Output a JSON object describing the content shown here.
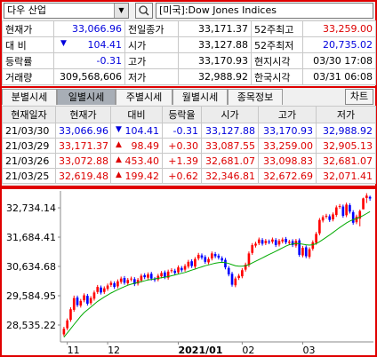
{
  "header": {
    "symbol": "다우 산업",
    "market": "[미국]:Dow Jones Indices"
  },
  "quote": {
    "change_arrow": "▼",
    "rows": [
      [
        "현재가",
        "33,066.96",
        "전일종가",
        "33,171.37",
        "52주최고",
        "33,259.00"
      ],
      [
        "대 비",
        "104.41",
        "시가",
        "33,127.88",
        "52주최저",
        "20,735.02"
      ],
      [
        "등락률",
        "-0.31",
        "고가",
        "33,170.93",
        "현지시각",
        "03/30 17:08"
      ],
      [
        "거래량",
        "309,568,606",
        "저가",
        "32,988.92",
        "한국시각",
        "03/31 06:08"
      ]
    ]
  },
  "tabs": [
    "분별시세",
    "일별시세",
    "주별시세",
    "월별시세",
    "종목정보"
  ],
  "chart_button": "차트",
  "daily": {
    "columns": [
      "현재일자",
      "현재가",
      "대비",
      "등락율",
      "시가",
      "고가",
      "저가"
    ],
    "rows": [
      {
        "color": "#0000dd",
        "date": "21/03/30",
        "price": "33,066.96",
        "arrow": "▼",
        "change": "104.41",
        "rate": "-0.31",
        "open": "33,127.88",
        "high": "33,170.93",
        "low": "32,988.92"
      },
      {
        "color": "#dd0000",
        "date": "21/03/29",
        "price": "33,171.37",
        "arrow": "▲",
        "change": "98.49",
        "rate": "+0.30",
        "open": "33,087.55",
        "high": "33,259.00",
        "low": "32,905.13"
      },
      {
        "color": "#dd0000",
        "date": "21/03/26",
        "price": "33,072.88",
        "arrow": "▲",
        "change": "453.40",
        "rate": "+1.39",
        "open": "32,681.07",
        "high": "33,098.83",
        "low": "32,681.07"
      },
      {
        "color": "#dd0000",
        "date": "21/03/25",
        "price": "32,619.48",
        "arrow": "▲",
        "change": "199.42",
        "rate": "+0.62",
        "open": "32,346.81",
        "high": "32,672.69",
        "low": "32,071.41"
      }
    ]
  },
  "chart_data": {
    "type": "candlestick",
    "up_color": "#ff0000",
    "down_color": "#0000ff",
    "categories": [
      null,
      "11",
      null,
      null,
      null,
      null,
      null,
      null,
      null,
      null,
      null,
      null,
      null,
      "12",
      null,
      null,
      null,
      null,
      null,
      null,
      null,
      null,
      null,
      null,
      null,
      null,
      null,
      null,
      null,
      null,
      null,
      null,
      null,
      null,
      "2021/01",
      null,
      null,
      null,
      null,
      null,
      null,
      null,
      null,
      null,
      null,
      null,
      null,
      null,
      null,
      null,
      null,
      null,
      null,
      "02",
      null,
      null,
      null,
      null,
      null,
      null,
      null,
      null,
      null,
      null,
      null,
      null,
      null,
      null,
      null,
      null,
      null,
      "03",
      null,
      null,
      null,
      null,
      null,
      null,
      null,
      null,
      null,
      null,
      null,
      null,
      null,
      null,
      null,
      null,
      null,
      null,
      null,
      null
    ],
    "open": [
      28200,
      28420,
      28720,
      29080,
      29520,
      29230,
      29420,
      29580,
      29320,
      29480,
      29720,
      29880,
      29720,
      29830,
      29970,
      30030,
      29920,
      30080,
      30220,
      30030,
      30170,
      30180,
      30020,
      30130,
      30320,
      30230,
      30370,
      30180,
      30170,
      30280,
      30420,
      30230,
      30470,
      30480,
      30420,
      30580,
      30520,
      30630,
      30820,
      30630,
      30920,
      31030,
      30970,
      30780,
      30920,
      31080,
      31020,
      30930,
      30870,
      30580,
      30370,
      29960,
      30220,
      30280,
      30520,
      30680,
      31120,
      31380,
      31470,
      31580,
      31470,
      31530,
      31520,
      31580,
      31420,
      31530,
      31620,
      31480,
      31540,
      31380,
      31570,
      31030,
      31320,
      30980,
      31270,
      31480,
      31820,
      32280,
      32420,
      32430,
      32320,
      32480,
      32770,
      32780,
      32470,
      32830,
      32580,
      32220,
      32346.81,
      32681.07,
      33087.55,
      33127.88
    ],
    "high": [
      28470,
      28770,
      29170,
      29590,
      29590,
      29470,
      29670,
      29650,
      29570,
      29770,
      29970,
      29950,
      29920,
      30020,
      30120,
      30100,
      30170,
      30270,
      30290,
      30220,
      30270,
      30250,
      30220,
      30370,
      30390,
      30420,
      30440,
      30250,
      30370,
      30470,
      30490,
      30520,
      30570,
      30550,
      30670,
      30650,
      30720,
      30870,
      30890,
      30970,
      31120,
      31100,
      31040,
      30970,
      31170,
      31150,
      31090,
      31000,
      30940,
      30650,
      30440,
      30270,
      30370,
      30570,
      30770,
      31170,
      31470,
      31520,
      31670,
      31650,
      31620,
      31600,
      31670,
      31650,
      31620,
      31670,
      31690,
      31590,
      31610,
      31620,
      31640,
      31370,
      31390,
      31320,
      31570,
      31870,
      32370,
      32470,
      32520,
      32500,
      32570,
      32820,
      32870,
      32850,
      32920,
      32900,
      32650,
      32490,
      32672.69,
      33098.83,
      33259.0,
      33170.93
    ],
    "low": [
      28130,
      28350,
      28650,
      29010,
      29180,
      29160,
      29350,
      29230,
      29250,
      29410,
      29650,
      29630,
      29650,
      29760,
      29900,
      29830,
      29850,
      30010,
      29980,
      29960,
      30100,
      29930,
      29950,
      30060,
      30180,
      30160,
      30130,
      30080,
      30100,
      30210,
      30180,
      30160,
      30400,
      30330,
      30350,
      30430,
      30450,
      30560,
      30580,
      30560,
      30850,
      30880,
      30730,
      30710,
      30850,
      30930,
      30880,
      30780,
      30530,
      30280,
      29910,
      29890,
      30150,
      30210,
      30450,
      30610,
      31050,
      31310,
      31400,
      31380,
      31400,
      31430,
      31450,
      31330,
      31350,
      31460,
      31430,
      31410,
      31330,
      31310,
      30980,
      30960,
      30930,
      30910,
      31200,
      31410,
      31750,
      32210,
      32350,
      32230,
      32250,
      32410,
      32700,
      32380,
      32400,
      32530,
      32130,
      32150,
      32071.41,
      32681.07,
      32905.13,
      32988.92
    ],
    "close": [
      28400,
      28700,
      29100,
      29500,
      29250,
      29400,
      29600,
      29300,
      29500,
      29700,
      29900,
      29700,
      29850,
      29950,
      30050,
      29900,
      30100,
      30200,
      30050,
      30150,
      30200,
      30000,
      30150,
      30300,
      30250,
      30350,
      30200,
      30150,
      30300,
      30400,
      30250,
      30450,
      30500,
      30400,
      30600,
      30500,
      30650,
      30800,
      30650,
      30900,
      31050,
      30950,
      30800,
      30900,
      31100,
      31000,
      30950,
      30850,
      30600,
      30350,
      29980,
      30200,
      30300,
      30500,
      30700,
      31100,
      31400,
      31450,
      31600,
      31450,
      31550,
      31500,
      31600,
      31400,
      31550,
      31600,
      31500,
      31520,
      31400,
      31550,
      31050,
      31300,
      31000,
      31250,
      31500,
      31800,
      32300,
      32400,
      32450,
      32300,
      32500,
      32750,
      32800,
      32450,
      32850,
      32600,
      32200,
      32420,
      32619.48,
      33072.88,
      33171.37,
      33066.96
    ],
    "ma": {
      "color": "#00aa00",
      "values": [
        28100,
        28250,
        28400,
        28550,
        28700,
        28850,
        28980,
        29080,
        29180,
        29280,
        29380,
        29460,
        29540,
        29610,
        29680,
        29740,
        29800,
        29860,
        29910,
        29960,
        30000,
        30030,
        30060,
        30090,
        30120,
        30150,
        30170,
        30190,
        30210,
        30230,
        30250,
        30270,
        30300,
        30330,
        30360,
        30390,
        30420,
        30460,
        30500,
        30540,
        30580,
        30620,
        30660,
        30690,
        30720,
        30750,
        30770,
        30780,
        30770,
        30740,
        30700,
        30660,
        30640,
        30640,
        30660,
        30700,
        30760,
        30820,
        30880,
        30940,
        31000,
        31060,
        31120,
        31180,
        31240,
        31300,
        31360,
        31410,
        31440,
        31460,
        31450,
        31430,
        31410,
        31400,
        31410,
        31450,
        31520,
        31600,
        31680,
        31760,
        31850,
        31940,
        32030,
        32110,
        32190,
        32260,
        32310,
        32350,
        32400,
        32460,
        32530,
        32600
      ]
    },
    "ylim": [
      27930,
      33340
    ],
    "yticks": [
      {
        "value": 32734.14,
        "label": "32,734.14"
      },
      {
        "value": 31684.41,
        "label": "31,684.41"
      },
      {
        "value": 30634.68,
        "label": "30,634.68"
      },
      {
        "value": 29584.95,
        "label": "29,584.95"
      },
      {
        "value": 28535.22,
        "label": "28,535.22"
      }
    ]
  }
}
